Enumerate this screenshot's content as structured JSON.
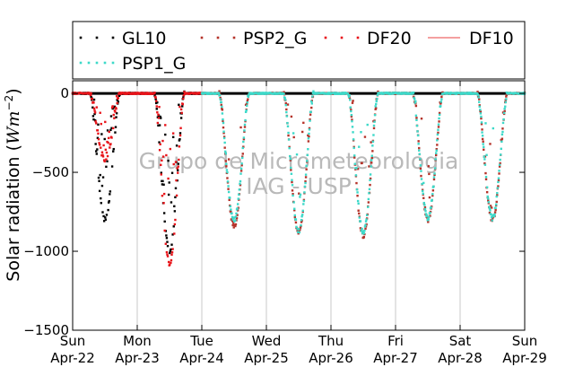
{
  "chart_data": {
    "type": "scatter",
    "ylabel_prefix": "Solar radiation (",
    "ylabel_unit": "Wm",
    "ylabel_exp": "−2",
    "ylabel_suffix": ")",
    "ylim": [
      -1500,
      80
    ],
    "xlim": [
      0,
      7
    ],
    "yticks": [
      0,
      -500,
      -1000,
      -1500
    ],
    "ytick_labels": [
      "0",
      "−500",
      "−1000",
      "−1500"
    ],
    "grid": true,
    "xticks": [
      {
        "day": "Sun",
        "date": "Apr-22"
      },
      {
        "day": "Mon",
        "date": "Apr-23"
      },
      {
        "day": "Tue",
        "date": "Apr-24"
      },
      {
        "day": "Wed",
        "date": "Apr-25"
      },
      {
        "day": "Thu",
        "date": "Apr-26"
      },
      {
        "day": "Fri",
        "date": "Apr-27"
      },
      {
        "day": "Sat",
        "date": "Apr-28"
      },
      {
        "day": "Sun",
        "date": "Apr-29"
      }
    ],
    "legend_placement": "top",
    "series": [
      {
        "name": "GL10",
        "color": "#000000",
        "marker": "dots",
        "days": [
          {
            "start": 0,
            "peak": -800,
            "scatter": 0.45
          },
          {
            "start": 1,
            "peak": -1000,
            "scatter": 0.5
          }
        ]
      },
      {
        "name": "PSP2_G",
        "color": "#b5332a",
        "marker": "dots",
        "days": [
          {
            "start": 2,
            "peak": -840,
            "scatter": 0.15
          },
          {
            "start": 3,
            "peak": -880,
            "scatter": 0.2
          },
          {
            "start": 4,
            "peak": -900,
            "scatter": 0.2
          },
          {
            "start": 5,
            "peak": -800,
            "scatter": 0.15
          },
          {
            "start": 6,
            "peak": -800,
            "scatter": 0.1
          }
        ]
      },
      {
        "name": "DF20",
        "color": "#e8141a",
        "marker": "dots",
        "days": [
          {
            "start": 0,
            "peak": -420,
            "scatter": 0.3
          },
          {
            "start": 1,
            "peak": -1080,
            "scatter": 0.4
          }
        ]
      },
      {
        "name": "DF10",
        "color": "#f08080",
        "marker": "line",
        "days": []
      },
      {
        "name": "PSP1_G",
        "color": "#3dd9c9",
        "marker": "dots",
        "days": [
          {
            "start": 2,
            "peak": -800,
            "scatter": 0.08
          },
          {
            "start": 3,
            "peak": -870,
            "scatter": 0.1
          },
          {
            "start": 4,
            "peak": -880,
            "scatter": 0.1
          },
          {
            "start": 5,
            "peak": -790,
            "scatter": 0.06
          },
          {
            "start": 6,
            "peak": -790,
            "scatter": 0.06
          }
        ]
      }
    ],
    "watermark": [
      "Grupo de Micrometeorologia",
      "IAG - USP"
    ]
  }
}
